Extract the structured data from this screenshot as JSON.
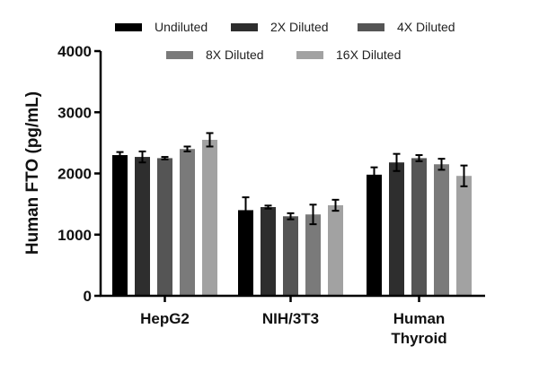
{
  "chart_data": {
    "type": "bar",
    "title": "",
    "xlabel": "",
    "ylabel": "Human FTO (pg/mL)",
    "ylim": [
      0,
      4000
    ],
    "yticks": [
      0,
      1000,
      2000,
      3000,
      4000
    ],
    "categories": [
      [
        "HepG2"
      ],
      [
        "NIH/3T3"
      ],
      [
        "Human",
        "Thyroid"
      ]
    ],
    "series": [
      {
        "name": "Undiluted",
        "color": "#000000",
        "values": [
          2300,
          1400,
          1980
        ],
        "errors": [
          50,
          210,
          120
        ]
      },
      {
        "name": "2X Diluted",
        "color": "#2e2e2e",
        "values": [
          2270,
          1450,
          2180
        ],
        "errors": [
          90,
          25,
          140
        ]
      },
      {
        "name": "4X Diluted",
        "color": "#555555",
        "values": [
          2250,
          1300,
          2250
        ],
        "errors": [
          20,
          50,
          50
        ]
      },
      {
        "name": "8X Diluted",
        "color": "#7a7a7a",
        "values": [
          2400,
          1330,
          2150
        ],
        "errors": [
          40,
          160,
          90
        ]
      },
      {
        "name": "16X Diluted",
        "color": "#a2a2a2",
        "values": [
          2550,
          1480,
          1960
        ],
        "errors": [
          110,
          90,
          170
        ]
      }
    ],
    "legend_position": "top"
  }
}
